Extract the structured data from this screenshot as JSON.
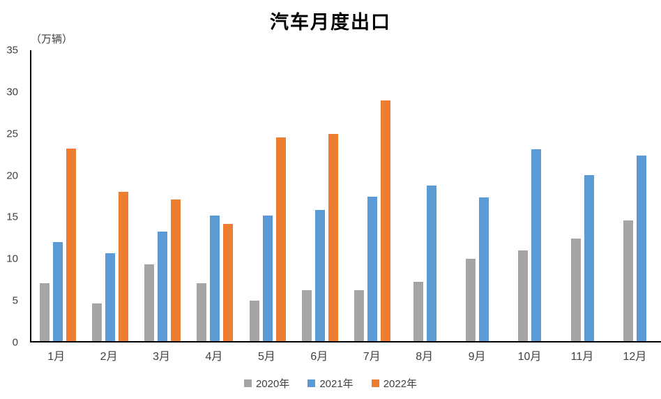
{
  "chart_data": {
    "type": "bar",
    "title": "汽车月度出口",
    "unit_label": "（万辆）",
    "categories": [
      "1月",
      "2月",
      "3月",
      "4月",
      "5月",
      "6月",
      "7月",
      "8月",
      "9月",
      "10月",
      "11月",
      "12月"
    ],
    "series": [
      {
        "name": "2020年",
        "color": "#A5A5A5",
        "values": [
          7.0,
          4.5,
          9.2,
          7.0,
          4.9,
          6.1,
          6.1,
          7.1,
          9.9,
          10.9,
          12.3,
          14.5
        ]
      },
      {
        "name": "2021年",
        "color": "#5B9BD5",
        "values": [
          11.9,
          10.6,
          13.2,
          15.1,
          15.1,
          15.8,
          17.4,
          18.7,
          17.3,
          23.1,
          20.0,
          22.3
        ]
      },
      {
        "name": "2022年",
        "color": "#ED7D31",
        "values": [
          23.2,
          18.0,
          17.0,
          14.1,
          24.5,
          24.9,
          29.0,
          null,
          null,
          null,
          null,
          null
        ]
      }
    ],
    "ylim": [
      0,
      35
    ],
    "ytick_step": 5,
    "grid": false,
    "legend_position": "bottom",
    "axis_color": "#000000",
    "text_color": "#404040"
  }
}
